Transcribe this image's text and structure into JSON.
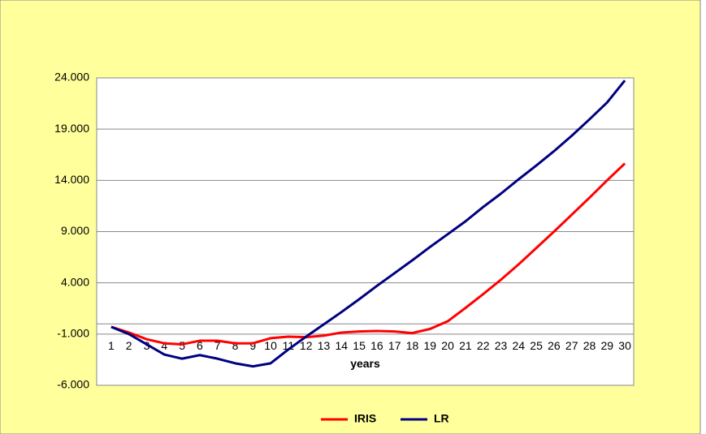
{
  "chart_data": {
    "type": "line",
    "x_label": "years",
    "categories": [
      "1",
      "2",
      "3",
      "4",
      "5",
      "6",
      "7",
      "8",
      "9",
      "10",
      "11",
      "12",
      "13",
      "14",
      "15",
      "16",
      "17",
      "18",
      "19",
      "20",
      "21",
      "22",
      "23",
      "24",
      "25",
      "26",
      "27",
      "28",
      "29",
      "30"
    ],
    "series": [
      {
        "name": "IRIS",
        "color": "#ff0000",
        "values": [
          -300,
          -850,
          -1500,
          -1900,
          -2000,
          -1650,
          -1650,
          -1900,
          -1900,
          -1400,
          -1250,
          -1300,
          -1150,
          -850,
          -750,
          -700,
          -750,
          -900,
          -500,
          250,
          1550,
          2900,
          4300,
          5800,
          7400,
          9000,
          10650,
          12300,
          14000,
          15650
        ]
      },
      {
        "name": "LR",
        "color": "#000080",
        "values": [
          -300,
          -1000,
          -2000,
          -3000,
          -3400,
          -3050,
          -3400,
          -3850,
          -4150,
          -3850,
          -2500,
          -1250,
          -50,
          1150,
          2400,
          3700,
          4950,
          6200,
          7500,
          8750,
          10000,
          11400,
          12700,
          14100,
          15450,
          16850,
          18350,
          19950,
          21600,
          23750
        ]
      }
    ],
    "ylim": [
      -6000,
      24000
    ],
    "yticks": [
      {
        "value": -6000,
        "label": "-6.000"
      },
      {
        "value": -1000,
        "label": "-1.000"
      },
      {
        "value": 4000,
        "label": "4.000"
      },
      {
        "value": 9000,
        "label": "9.000"
      },
      {
        "value": 14000,
        "label": "14.000"
      },
      {
        "value": 19000,
        "label": "19.000"
      },
      {
        "value": 24000,
        "label": "24.000"
      }
    ],
    "grid": true,
    "legend": "bottom"
  }
}
